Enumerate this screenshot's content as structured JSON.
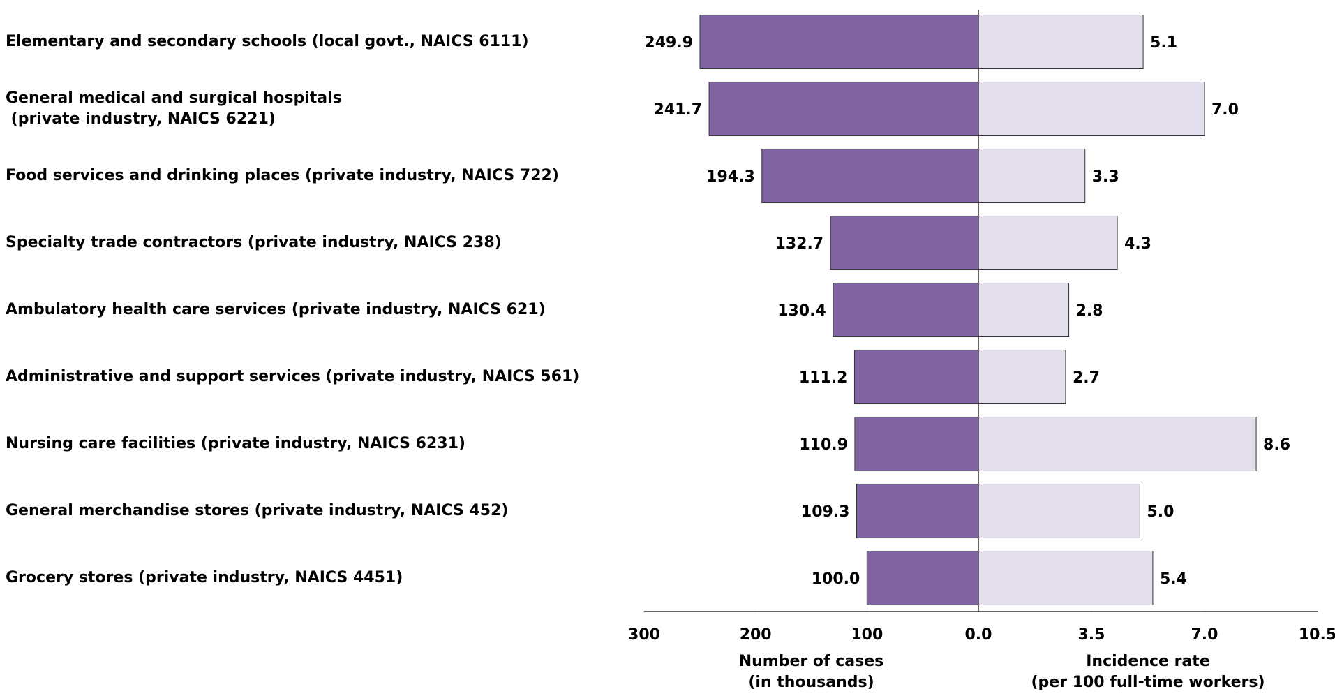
{
  "chart_data": {
    "type": "butterfly-bar",
    "categories": [
      "Elementary and secondary schools (local govt., NAICS 6111)",
      "General medical and surgical hospitals\n (private industry, NAICS 6221)",
      "Food services and drinking places (private industry, NAICS 722)",
      "Specialty trade contractors (private industry, NAICS 238)",
      "Ambulatory health care services (private industry, NAICS 621)",
      "Administrative and support services (private industry, NAICS 561)",
      "Nursing care facilities (private industry, NAICS 6231)",
      "General merchandise stores (private industry, NAICS 452)",
      "Grocery stores (private industry, NAICS 4451)"
    ],
    "left": {
      "values": [
        249.9,
        241.7,
        194.3,
        132.7,
        130.4,
        111.2,
        110.9,
        109.3,
        100.0
      ],
      "value_labels": [
        "249.9",
        "241.7",
        "194.3",
        "132.7",
        "130.4",
        "111.2",
        "110.9",
        "109.3",
        "100.0"
      ],
      "color": "#8064a2",
      "xlim": [
        0,
        300
      ],
      "xticks": [
        300,
        200,
        100
      ],
      "xlabel": "Number of cases\n(in thousands)"
    },
    "right": {
      "values": [
        5.1,
        7.0,
        3.3,
        4.3,
        2.8,
        2.7,
        8.6,
        5.0,
        5.4
      ],
      "value_labels": [
        "5.1",
        "7.0",
        "3.3",
        "4.3",
        "2.8",
        "2.7",
        "8.6",
        "5.0",
        "5.4"
      ],
      "color": "#e4dfec",
      "xlim": [
        0,
        10.5
      ],
      "xticks": [
        {
          "value": 0,
          "label": "0.0"
        },
        3.5,
        {
          "value": 7,
          "label": "7.0"
        },
        10.5
      ],
      "xlabel": "Incidence rate\n(per 100 full-time workers)"
    },
    "grid": false
  }
}
